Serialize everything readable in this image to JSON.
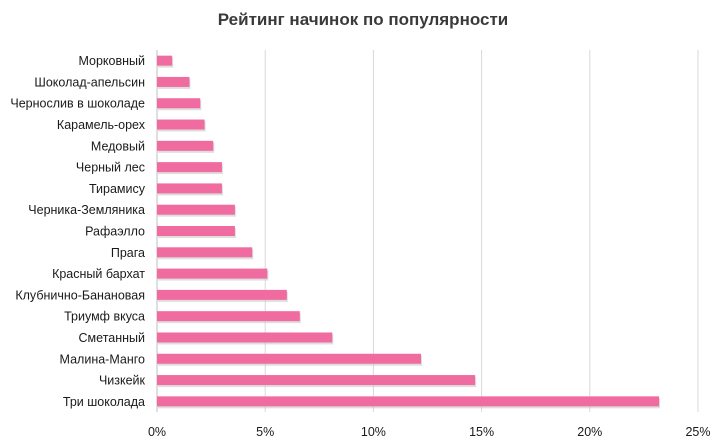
{
  "chart_data": {
    "type": "bar",
    "orientation": "horizontal",
    "title": "Рейтинг начинок по популярности",
    "xlabel": "",
    "ylabel": "",
    "xlim": [
      0,
      25
    ],
    "x_ticks": [
      "0%",
      "5%",
      "10%",
      "15%",
      "20%",
      "25%"
    ],
    "grid": true,
    "legend": "none",
    "bar_color": "#f06b9f",
    "categories": [
      "Морковный",
      "Шоколад-апельсин",
      "Чернослив в шоколаде",
      "Карамель-орех",
      "Медовый",
      "Черный лес",
      "Тирамису",
      "Черника-Земляника",
      "Рафаэлло",
      "Прага",
      "Красный бархат",
      "Клубнично-Банановая",
      "Триумф вкуса",
      "Сметанный",
      "Малина-Манго",
      "Чизкейк",
      "Три шоколада"
    ],
    "values": [
      0.7,
      1.5,
      2.0,
      2.2,
      2.6,
      3.0,
      3.0,
      3.6,
      3.6,
      4.4,
      5.1,
      6.0,
      6.6,
      8.1,
      12.2,
      14.7,
      23.2
    ]
  }
}
